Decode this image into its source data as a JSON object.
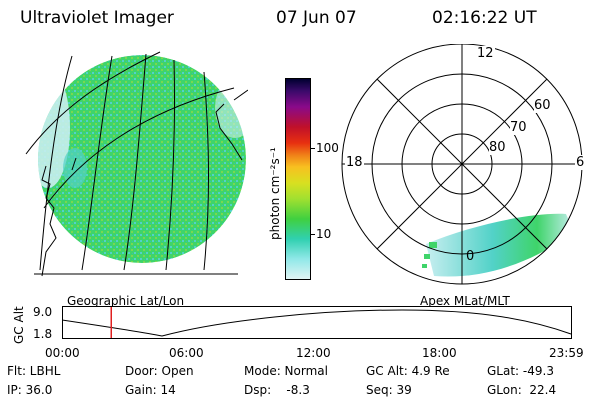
{
  "header": {
    "title": "Ultraviolet Imager",
    "date": "07 Jun 07",
    "time": "02:16:22 UT"
  },
  "geo_panel": {
    "label": "Geographic Lat/Lon",
    "colors": {
      "fill": "#3fd46a",
      "fill_light": "#c8eef0",
      "fill_cyan": "#52d2c8",
      "lines": "#000000"
    }
  },
  "colorbar": {
    "unit_label": "photon cm⁻²s⁻¹",
    "ticks": [
      "100",
      "10"
    ],
    "colors": [
      "#000030",
      "#3a0a6a",
      "#8a0a8a",
      "#c0102a",
      "#e83010",
      "#f08018",
      "#f8c020",
      "#d8e020",
      "#a0e030",
      "#40d040",
      "#30d0b0",
      "#90e8e8",
      "#e0f4f4"
    ]
  },
  "polar_panel": {
    "label": "Apex MLat/MLT",
    "hour_labels": {
      "top": "12",
      "left": "18",
      "right": "6",
      "bottom": "0"
    },
    "lat_labels": [
      "60",
      "70",
      "80"
    ]
  },
  "gc_alt_plot": {
    "ylabel": "GC Alt",
    "y_ticks": [
      "9.0",
      "1.8"
    ],
    "x_ticks": [
      "00:00",
      "06:00",
      "12:00",
      "18:00",
      "23:59"
    ],
    "current_time_fraction": 0.095,
    "marker_color": "#e02020"
  },
  "status": {
    "flt": "Flt: LBHL",
    "door": "Door: Open",
    "mode": "Mode: Normal",
    "gc_alt": "GC Alt: 4.9 Re",
    "glat": "GLat: -49.3",
    "ip": "IP: 36.0",
    "gain": "Gain: 14",
    "dsp": "Dsp:    -8.3",
    "seq": "Seq: 39",
    "glon": "GLon:  22.4"
  }
}
